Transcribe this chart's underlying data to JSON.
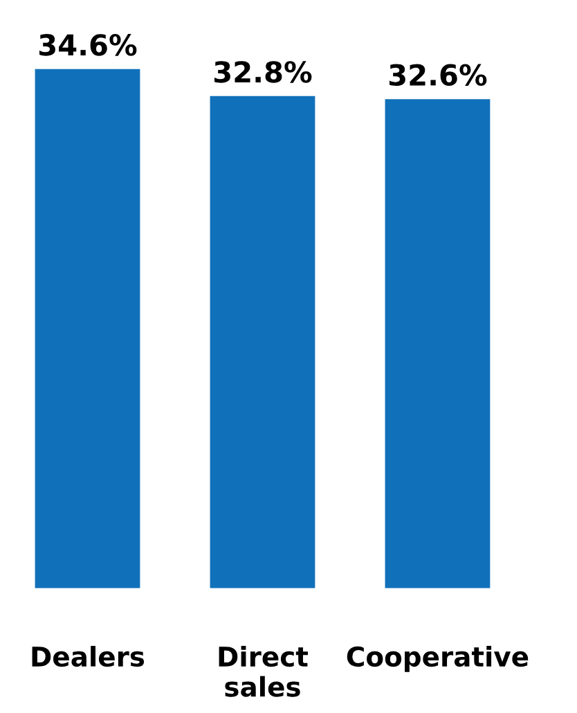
{
  "chart_data": {
    "type": "bar",
    "categories": [
      "Dealers",
      "Direct\nsales",
      "Cooperative"
    ],
    "values": [
      34.6,
      32.8,
      32.6
    ],
    "color": "#1170ba",
    "value_labels": [
      "34.6%",
      "32.8%",
      "32.6%"
    ],
    "grid": false,
    "legend": false
  }
}
